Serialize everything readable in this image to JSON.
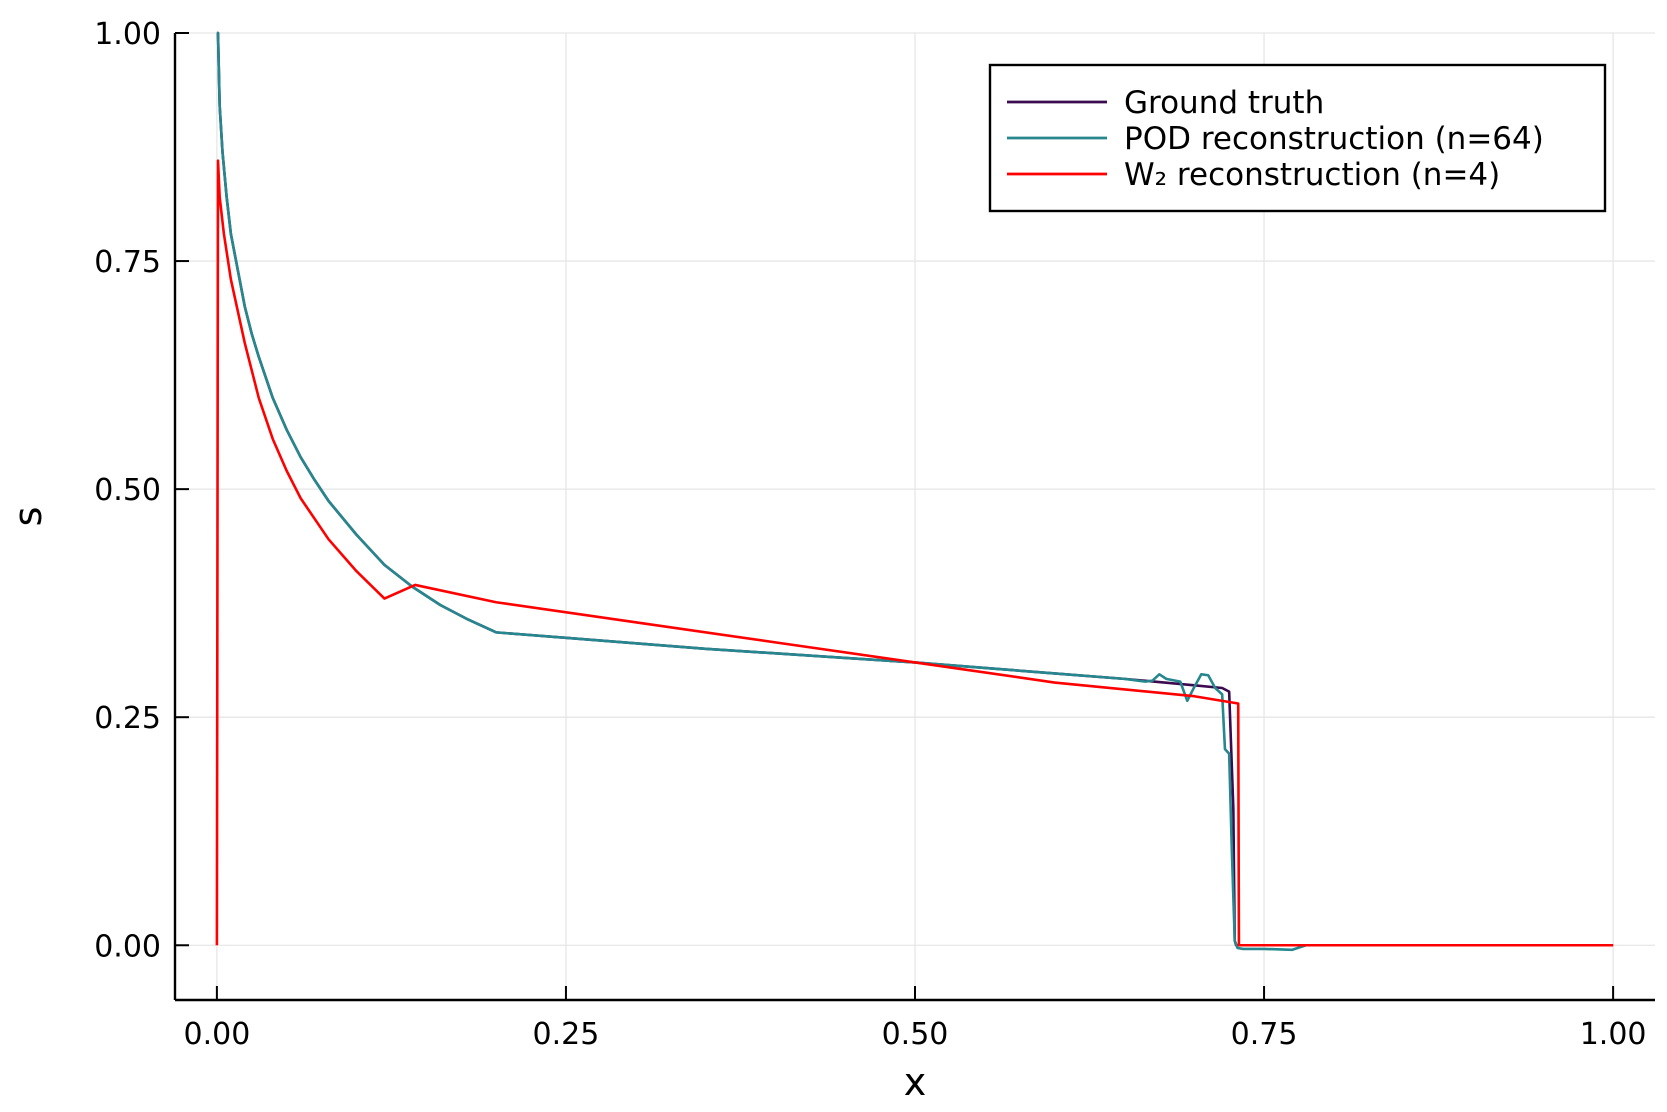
{
  "chart_data": {
    "type": "line",
    "title": "",
    "xlabel": "x",
    "ylabel": "s",
    "xlim": [
      -0.03,
      1.03
    ],
    "ylim": [
      -0.06,
      1.0
    ],
    "x_ticks": [
      0.0,
      0.25,
      0.5,
      0.75,
      1.0
    ],
    "x_tick_labels": [
      "0.00",
      "0.25",
      "0.50",
      "0.75",
      "1.00"
    ],
    "y_ticks": [
      0.0,
      0.25,
      0.5,
      0.75,
      1.0
    ],
    "y_tick_labels": [
      "0.00",
      "0.25",
      "0.50",
      "0.75",
      "1.00"
    ],
    "grid": true,
    "legend_position": "top-right",
    "series": [
      {
        "name": "Ground truth",
        "color": "#3b0a4f",
        "x": [
          0.0,
          0.0008,
          0.002,
          0.004,
          0.007,
          0.01,
          0.015,
          0.02,
          0.025,
          0.03,
          0.04,
          0.05,
          0.06,
          0.07,
          0.08,
          0.1,
          0.12,
          0.14,
          0.16,
          0.18,
          0.2,
          0.25,
          0.3,
          0.35,
          0.4,
          0.45,
          0.5,
          0.55,
          0.6,
          0.65,
          0.7,
          0.72,
          0.725,
          0.728,
          0.729,
          0.73,
          0.74,
          0.8,
          0.9,
          1.0
        ],
        "y": [
          1.0,
          1.0,
          0.92,
          0.87,
          0.82,
          0.78,
          0.74,
          0.7,
          0.67,
          0.645,
          0.6,
          0.565,
          0.535,
          0.51,
          0.487,
          0.45,
          0.417,
          0.393,
          0.373,
          0.357,
          0.343,
          0.337,
          0.331,
          0.325,
          0.32,
          0.315,
          0.31,
          0.304,
          0.298,
          0.292,
          0.285,
          0.282,
          0.278,
          0.15,
          0.005,
          0.0,
          0.0,
          0.0,
          0.0,
          0.0
        ]
      },
      {
        "name": "POD reconstruction (n=64)",
        "color": "#26878e",
        "x": [
          0.0,
          0.0008,
          0.002,
          0.004,
          0.007,
          0.01,
          0.015,
          0.02,
          0.025,
          0.03,
          0.04,
          0.05,
          0.06,
          0.07,
          0.08,
          0.1,
          0.12,
          0.14,
          0.16,
          0.18,
          0.2,
          0.25,
          0.3,
          0.35,
          0.4,
          0.45,
          0.5,
          0.55,
          0.6,
          0.65,
          0.66,
          0.665,
          0.67,
          0.675,
          0.68,
          0.69,
          0.695,
          0.7,
          0.705,
          0.71,
          0.715,
          0.72,
          0.722,
          0.725,
          0.727,
          0.729,
          0.731,
          0.735,
          0.75,
          0.77,
          0.78,
          0.8,
          0.83,
          0.86,
          0.9,
          0.95,
          1.0
        ],
        "y": [
          1.0,
          1.0,
          0.92,
          0.87,
          0.82,
          0.78,
          0.74,
          0.7,
          0.67,
          0.645,
          0.6,
          0.565,
          0.535,
          0.51,
          0.487,
          0.45,
          0.417,
          0.393,
          0.373,
          0.357,
          0.343,
          0.337,
          0.331,
          0.325,
          0.32,
          0.315,
          0.31,
          0.304,
          0.298,
          0.292,
          0.29,
          0.289,
          0.29,
          0.297,
          0.292,
          0.289,
          0.268,
          0.283,
          0.297,
          0.296,
          0.282,
          0.275,
          0.215,
          0.21,
          0.1,
          0.005,
          -0.003,
          -0.004,
          -0.004,
          -0.005,
          0.0,
          0.0,
          0.0,
          0.0,
          0.0,
          0.0,
          0.0
        ]
      },
      {
        "name": "W₂ reconstruction (n=4)",
        "color": "#ff0000",
        "x": [
          0.0,
          0.0008,
          0.002,
          0.005,
          0.01,
          0.02,
          0.03,
          0.04,
          0.05,
          0.06,
          0.08,
          0.1,
          0.12,
          0.142,
          0.2,
          0.3,
          0.4,
          0.5,
          0.6,
          0.7,
          0.7315,
          0.732,
          0.733,
          0.8,
          0.9,
          1.0
        ],
        "y": [
          0.0,
          0.86,
          0.82,
          0.78,
          0.73,
          0.66,
          0.6,
          0.555,
          0.52,
          0.49,
          0.445,
          0.41,
          0.38,
          0.395,
          0.376,
          0.354,
          0.332,
          0.31,
          0.288,
          0.273,
          0.265,
          0.0,
          0.0,
          0.0,
          0.0,
          0.0
        ]
      }
    ]
  }
}
